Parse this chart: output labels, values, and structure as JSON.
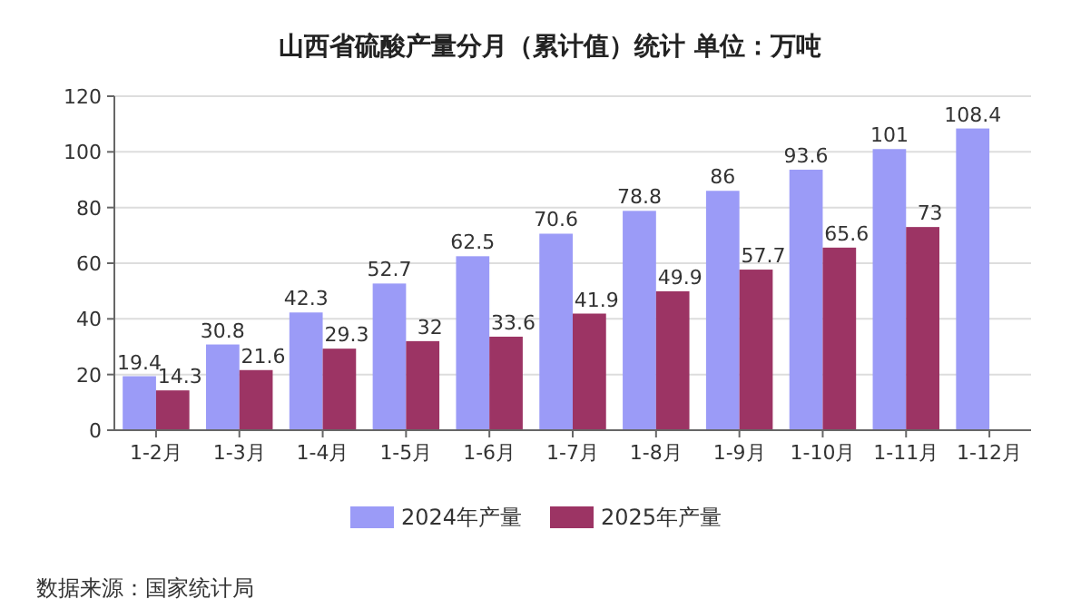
{
  "chart_data": {
    "type": "bar",
    "title": "山西省硫酸产量分月（累计值）统计  单位：万吨",
    "categories": [
      "1-2月",
      "1-3月",
      "1-4月",
      "1-5月",
      "1-6月",
      "1-7月",
      "1-8月",
      "1-9月",
      "1-10月",
      "1-11月",
      "1-12月"
    ],
    "series": [
      {
        "name": "2024年产量",
        "color": "#9b9bf7",
        "values": [
          19.4,
          30.8,
          42.3,
          52.7,
          62.5,
          70.6,
          78.8,
          86,
          93.6,
          101,
          108.4
        ]
      },
      {
        "name": "2025年产量",
        "color": "#9c3464",
        "values": [
          14.3,
          21.6,
          29.3,
          32,
          33.6,
          41.9,
          49.9,
          57.7,
          65.6,
          73,
          null
        ]
      }
    ],
    "ylim": [
      0,
      120
    ],
    "yticks": [
      0,
      20,
      40,
      60,
      80,
      100,
      120
    ],
    "grid": "y",
    "legend": "bottom",
    "data_labels": true,
    "annotations": [
      "数据来源：国家统计局"
    ]
  }
}
